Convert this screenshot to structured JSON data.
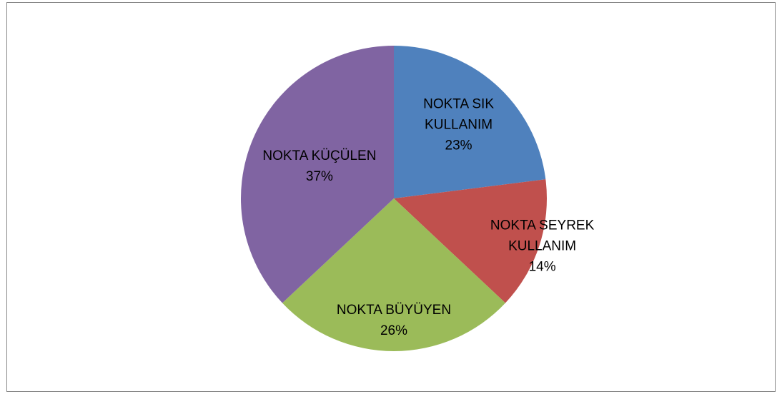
{
  "chart_data": {
    "type": "pie",
    "categories": [
      "NOKTA SIK KULLANIM",
      "NOKTA SEYREK KULLANIM",
      "NOKTA BÜYÜYEN",
      "NOKTA KÜÇÜLEN"
    ],
    "values": [
      23,
      14,
      26,
      37
    ],
    "value_labels": [
      "23%",
      "14%",
      "26%",
      "37%"
    ],
    "colors": [
      "#4f81bd",
      "#c0504d",
      "#9bbb59",
      "#8064a2"
    ]
  }
}
